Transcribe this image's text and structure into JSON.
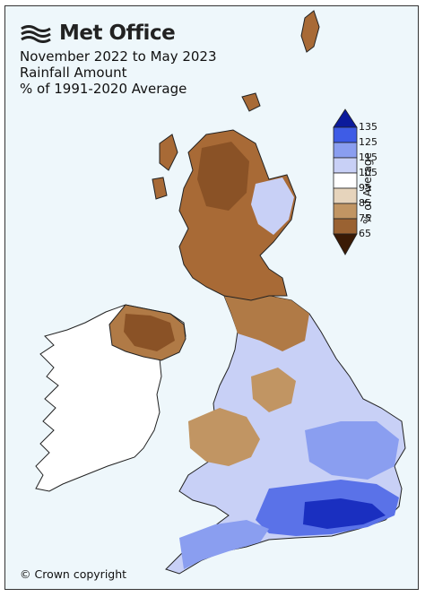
{
  "header": {
    "brand": "Met Office",
    "title_line1": "November 2022 to May 2023",
    "title_line2": "Rainfall Amount",
    "title_line3": "% of 1991-2020 Average"
  },
  "legend": {
    "title": "% of Average",
    "ticks": [
      "135",
      "125",
      "115",
      "105",
      "95",
      "85",
      "75",
      "65"
    ],
    "colors": [
      "#0b1a9c",
      "#3e5ce6",
      "#8a9ef0",
      "#c8d0f6",
      "#ffffff",
      "#c9a27a",
      "#9a6232",
      "#5e2d0b",
      "#3a1a05"
    ]
  },
  "footer": {
    "copyright": "© Crown copyright"
  },
  "colors": {
    "sea": "#eef7fb",
    "ireland": "#ffffff",
    "dry_mid": "#a86a36",
    "dry_light": "#c9a27a",
    "wet_light": "#c8d0f6",
    "wet_mid": "#7d8ff0",
    "wet_deep": "#1a2fc0"
  }
}
